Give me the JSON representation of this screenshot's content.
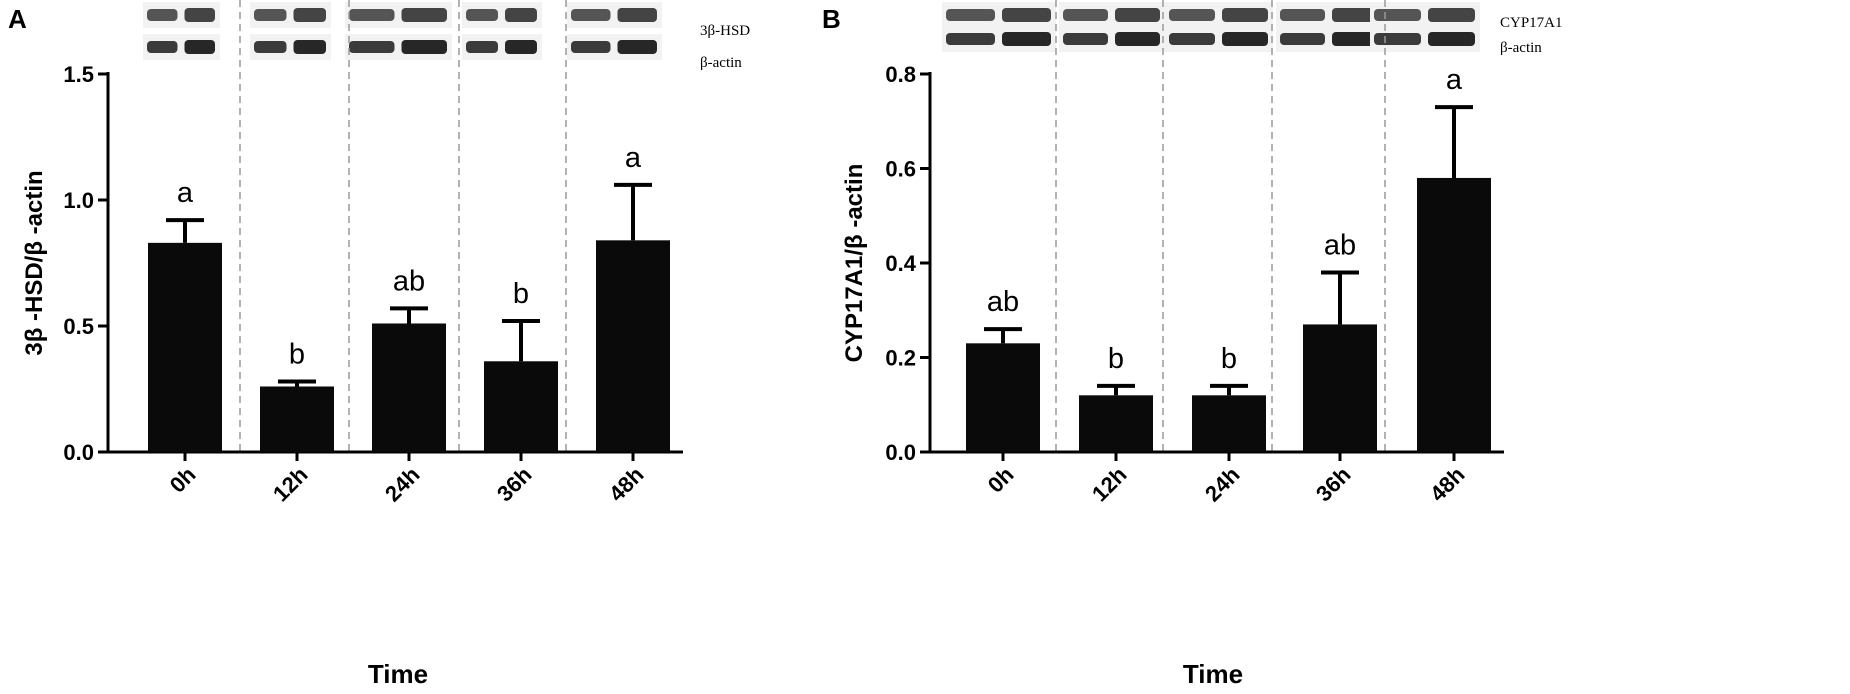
{
  "chart_data": [
    {
      "type": "bar",
      "panel_label": "A",
      "ylabel": "3β -HSD/β -actin",
      "xlabel": "Time",
      "categories": [
        "0h",
        "12h",
        "24h",
        "36h",
        "48h"
      ],
      "values": [
        0.83,
        0.26,
        0.51,
        0.36,
        0.84
      ],
      "errors": [
        0.09,
        0.02,
        0.06,
        0.16,
        0.22
      ],
      "significance": [
        "a",
        "b",
        "ab",
        "b",
        "a"
      ],
      "ylim": [
        0,
        1.5
      ],
      "yticks": [
        "0.0",
        "0.5",
        "1.0",
        "1.5"
      ],
      "blot_labels": [
        "3β-HSD",
        "β-actin"
      ],
      "bar_color": "#0a0a0a"
    },
    {
      "type": "bar",
      "panel_label": "B",
      "ylabel": "CYP17A1/β -actin",
      "xlabel": "Time",
      "categories": [
        "0h",
        "12h",
        "24h",
        "36h",
        "48h"
      ],
      "values": [
        0.23,
        0.12,
        0.12,
        0.27,
        0.58
      ],
      "errors": [
        0.03,
        0.02,
        0.02,
        0.11,
        0.15
      ],
      "significance": [
        "ab",
        "b",
        "b",
        "ab",
        "a"
      ],
      "ylim": [
        0,
        0.8
      ],
      "yticks": [
        "0.0",
        "0.2",
        "0.4",
        "0.6",
        "0.8"
      ],
      "blot_labels": [
        "CYP17A1",
        "β-actin"
      ],
      "bar_color": "#0a0a0a"
    }
  ]
}
